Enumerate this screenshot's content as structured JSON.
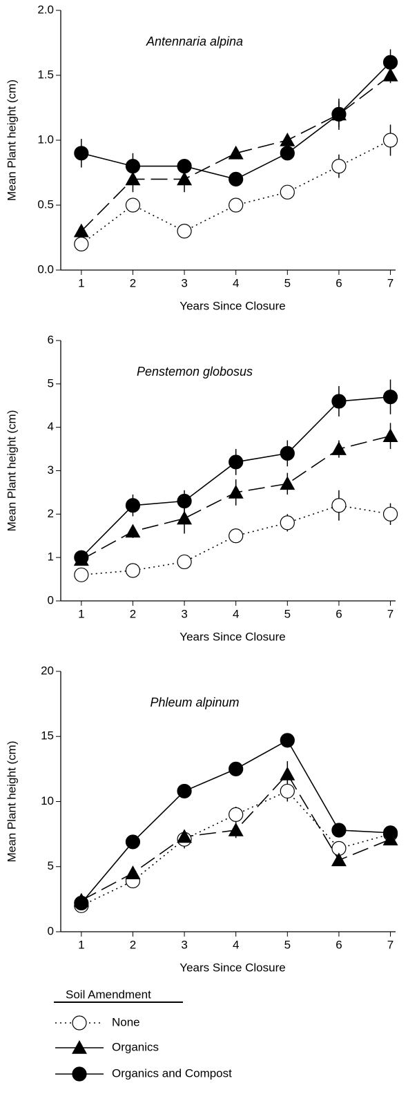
{
  "chart_data": [
    {
      "type": "line",
      "title": "Antennaria alpina",
      "xlabel": "Years Since Closure",
      "ylabel": "Mean Plant height (cm)",
      "x": [
        1,
        2,
        3,
        4,
        5,
        6,
        7
      ],
      "xlim": [
        0.6,
        7.1
      ],
      "xticks": [
        1,
        2,
        3,
        4,
        5,
        6,
        7
      ],
      "ylim": [
        0,
        2
      ],
      "yticks": [
        {
          "value": 0,
          "label": "0.0"
        },
        0.5,
        {
          "value": 1,
          "label": "1.0"
        },
        1.5,
        {
          "value": 2,
          "label": "2.0"
        }
      ],
      "legend_title": "Soil Amendment",
      "series": [
        {
          "name": "None",
          "color": "#000000",
          "marker": "open-circle",
          "line": "dotted",
          "values": [
            0.2,
            0.5,
            0.3,
            0.5,
            0.6,
            0.8,
            1.0
          ],
          "errors": [
            0.03,
            0.05,
            0.03,
            0.05,
            0.05,
            0.09,
            0.12
          ]
        },
        {
          "name": "Organics",
          "color": "#000000",
          "marker": "triangle",
          "line": "dashed",
          "values": [
            0.3,
            0.7,
            0.7,
            0.9,
            1.0,
            1.2,
            1.5
          ],
          "errors": [
            0.03,
            0.1,
            0.1,
            0.03,
            0.05,
            0.1,
            0.06
          ]
        },
        {
          "name": "Organics and Compost",
          "color": "#000000",
          "marker": "filled-circle",
          "line": "solid",
          "values": [
            0.9,
            0.8,
            0.8,
            0.7,
            0.9,
            1.2,
            1.6
          ],
          "errors": [
            0.11,
            0.1,
            0.05,
            0.04,
            0.05,
            0.12,
            0.1
          ]
        }
      ]
    },
    {
      "type": "line",
      "title": "Penstemon globosus",
      "xlabel": "Years Since Closure",
      "ylabel": "Mean Plant height (cm)",
      "x": [
        1,
        2,
        3,
        4,
        5,
        6,
        7
      ],
      "xlim": [
        0.6,
        7.1
      ],
      "xticks": [
        1,
        2,
        3,
        4,
        5,
        6,
        7
      ],
      "ylim": [
        0,
        6
      ],
      "yticks": [
        0,
        1,
        2,
        3,
        4,
        5,
        6
      ],
      "series": [
        {
          "name": "None",
          "color": "#000000",
          "marker": "open-circle",
          "line": "dotted",
          "values": [
            0.6,
            0.7,
            0.9,
            1.5,
            1.8,
            2.2,
            2.0
          ],
          "errors": [
            0.08,
            0.1,
            0.1,
            0.15,
            0.2,
            0.35,
            0.25
          ]
        },
        {
          "name": "Organics",
          "color": "#000000",
          "marker": "triangle",
          "line": "dashed",
          "values": [
            0.95,
            1.6,
            1.9,
            2.5,
            2.7,
            3.5,
            3.8
          ],
          "errors": [
            0.1,
            0.15,
            0.35,
            0.3,
            0.25,
            0.2,
            0.3
          ]
        },
        {
          "name": "Organics and Compost",
          "color": "#000000",
          "marker": "filled-circle",
          "line": "solid",
          "values": [
            1.0,
            2.2,
            2.3,
            3.2,
            3.4,
            4.6,
            4.7
          ],
          "errors": [
            0.1,
            0.25,
            0.25,
            0.3,
            0.3,
            0.35,
            0.4
          ]
        }
      ]
    },
    {
      "type": "line",
      "title": "Phleum alpinum",
      "xlabel": "Years Since Closure",
      "ylabel": "Mean Plant height (cm)",
      "x": [
        1,
        2,
        3,
        4,
        5,
        6,
        7
      ],
      "xlim": [
        0.6,
        7.1
      ],
      "xticks": [
        1,
        2,
        3,
        4,
        5,
        6,
        7
      ],
      "ylim": [
        0,
        20
      ],
      "yticks": [
        0,
        5,
        10,
        15,
        20
      ],
      "series": [
        {
          "name": "None",
          "color": "#000000",
          "marker": "open-circle",
          "line": "dotted",
          "values": [
            2.0,
            3.9,
            7.1,
            9.0,
            10.8,
            6.4,
            7.5
          ],
          "errors": [
            0.3,
            0.4,
            0.7,
            0.6,
            0.8,
            0.5,
            0.4
          ]
        },
        {
          "name": "Organics",
          "color": "#000000",
          "marker": "triangle",
          "line": "dashed",
          "values": [
            2.4,
            4.5,
            7.3,
            7.8,
            12.1,
            5.5,
            7.1
          ],
          "errors": [
            0.3,
            0.3,
            0.5,
            0.6,
            1.0,
            0.4,
            0.4
          ]
        },
        {
          "name": "Organics and Compost",
          "color": "#000000",
          "marker": "filled-circle",
          "line": "solid",
          "values": [
            2.2,
            6.9,
            10.8,
            12.5,
            14.7,
            7.8,
            7.6
          ],
          "errors": [
            0.2,
            0.3,
            0.4,
            0.4,
            0.5,
            0.3,
            0.3
          ]
        }
      ]
    }
  ]
}
